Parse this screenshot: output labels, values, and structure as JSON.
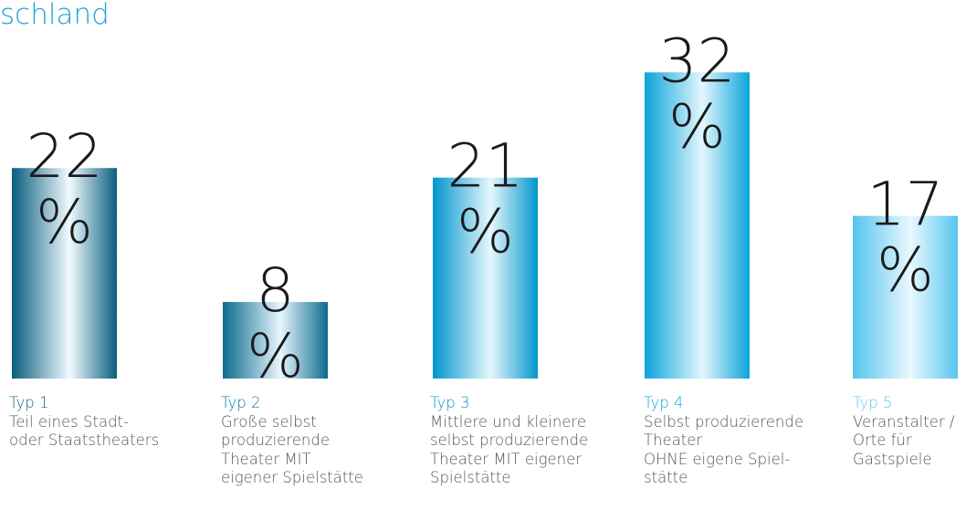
{
  "title": "geöffnete\nschland",
  "colors": {
    "title": "#1fa2d6",
    "value_text": "#1a1a1a",
    "description_text": "#555555"
  },
  "chart_data": {
    "type": "bar",
    "unit": "%",
    "categories": [
      "Typ 1",
      "Typ 2",
      "Typ 3",
      "Typ 4",
      "Typ 5"
    ],
    "values": [
      22,
      8,
      21,
      32,
      17
    ],
    "descriptions": [
      "Teil eines Stadt-\noder Staatstheaters",
      "Große selbst\nproduzierende\nTheater MIT\neigener Spielstätte",
      "Mittlere und kleinere\nselbst produzierende\nTheater MIT eigener\nSpielstätte",
      "Selbst produzierende\nTheater\nOHNE eigene Spiel-\nstätte",
      "Veranstalter /\nOrte für\nGastspiele"
    ],
    "bar_colors": [
      {
        "dark": "#0a5d7e",
        "light": "#f0fbff"
      },
      {
        "dark": "#0c6b8f",
        "light": "#e6f6fd"
      },
      {
        "dark": "#0096cc",
        "light": "#e6f7fd"
      },
      {
        "dark": "#0aa4db",
        "light": "#e4f7fe"
      },
      {
        "dark": "#55c5ee",
        "light": "#e9f8fe"
      }
    ],
    "label_colors": [
      "#0f6a8c",
      "#0e7aa6",
      "#1092c9",
      "#17a6df",
      "#5cc7f0"
    ],
    "title": "",
    "xlabel": "",
    "ylabel": "",
    "ylim": [
      0,
      32
    ],
    "grid": false,
    "legend": "none"
  }
}
